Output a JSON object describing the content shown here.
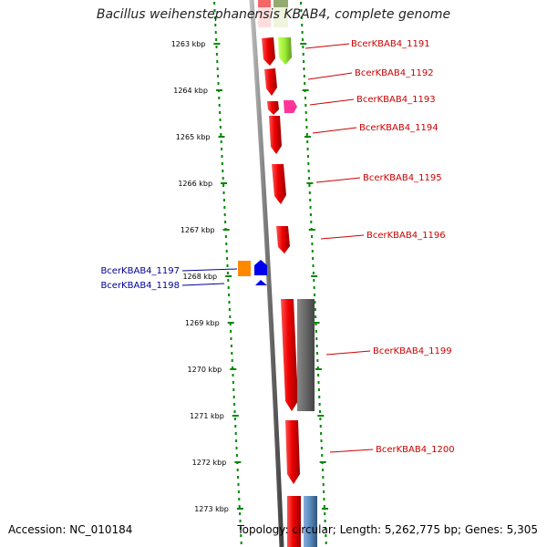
{
  "title": "Bacillus weihenstephanensis KBAB4, complete genome",
  "accession": "Accession: NC_010184",
  "topology": "Topology: circular; Length: 5,262,775 bp; Genes: 5,305",
  "colors": {
    "forward_label": "#cc0000",
    "reverse_label": "#000099",
    "tick": "#008800",
    "backbone": "#777777"
  },
  "kbp_ticks": [
    "1263 kbp",
    "1264 kbp",
    "1265 kbp",
    "1266 kbp",
    "1267 kbp",
    "1268 kbp",
    "1269 kbp",
    "1270 kbp",
    "1271 kbp",
    "1272 kbp",
    "1273 kbp"
  ],
  "gene_labels": [
    {
      "name": "BcerKBAB4_1191",
      "strand": "forward"
    },
    {
      "name": "BcerKBAB4_1192",
      "strand": "forward"
    },
    {
      "name": "BcerKBAB4_1193",
      "strand": "forward"
    },
    {
      "name": "BcerKBAB4_1194",
      "strand": "forward"
    },
    {
      "name": "BcerKBAB4_1195",
      "strand": "forward"
    },
    {
      "name": "BcerKBAB4_1196",
      "strand": "forward"
    },
    {
      "name": "BcerKBAB4_1197",
      "strand": "reverse"
    },
    {
      "name": "BcerKBAB4_1198",
      "strand": "reverse"
    },
    {
      "name": "BcerKBAB4_1199",
      "strand": "forward"
    },
    {
      "name": "BcerKBAB4_1200",
      "strand": "forward"
    }
  ],
  "feature_colors": {
    "cds": "#ee0000",
    "light_green": "#99ee33",
    "magenta": "#ff3399",
    "orange": "#ff8800",
    "blue": "#0000ee",
    "gray": "#666666",
    "steel_blue": "#5588bb",
    "olive": "#668833"
  }
}
